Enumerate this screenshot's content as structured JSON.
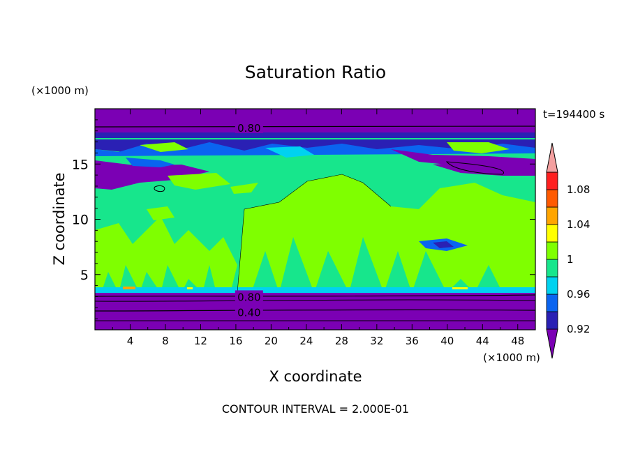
{
  "chart_data": {
    "type": "heatmap",
    "title": "Saturation Ratio",
    "xlabel": "X coordinate",
    "ylabel": "Z coordinate",
    "x_unit": "(×1000 m)",
    "y_unit": "(×1000 m)",
    "time_label": "t=194400 s",
    "footer": "CONTOUR INTERVAL = 2.000E-01",
    "xlim": [
      0,
      50
    ],
    "ylim": [
      0,
      20
    ],
    "x_ticks": [
      4,
      8,
      12,
      16,
      20,
      24,
      28,
      32,
      36,
      40,
      44,
      48
    ],
    "y_ticks": [
      5,
      10,
      15
    ],
    "contour_labels": [
      {
        "text": "0.80",
        "x": 17.5,
        "y": 18.3
      },
      {
        "text": "0.80",
        "x": 17.5,
        "y": 3.0
      },
      {
        "text": "0.40",
        "x": 17.5,
        "y": 1.6
      }
    ],
    "colorbar": {
      "levels": [
        0.92,
        0.94,
        0.96,
        0.98,
        1.0,
        1.02,
        1.04,
        1.06,
        1.08,
        1.1
      ],
      "tick_labels": [
        "0.92",
        "0.96",
        "1",
        "1.04",
        "1.08"
      ],
      "colors": [
        "#7b00b4",
        "#2a20b4",
        "#0a64f0",
        "#00d2f0",
        "#17e68c",
        "#7fff00",
        "#ffff00",
        "#ffa500",
        "#ff5a00",
        "#ff2020",
        "#f4a0a0"
      ]
    },
    "layers": [
      {
        "z_range": [
          0,
          3.3
        ],
        "saturation_ratio": "< 0.90",
        "color": "#7b00b4"
      },
      {
        "z_range": [
          3.3,
          11
        ],
        "saturation_ratio": "0.98 - 1.02",
        "color": "#17e68c"
      },
      {
        "z_range": [
          11,
          15
        ],
        "saturation_ratio": "0.90 - 1.00",
        "color": "#17e68c"
      },
      {
        "z_range": [
          15,
          17.5
        ],
        "saturation_ratio": "0.90 - 1.00",
        "color": "#2a20b4"
      },
      {
        "z_range": [
          17.5,
          20
        ],
        "saturation_ratio": "< 0.90",
        "color": "#7b00b4"
      }
    ]
  }
}
